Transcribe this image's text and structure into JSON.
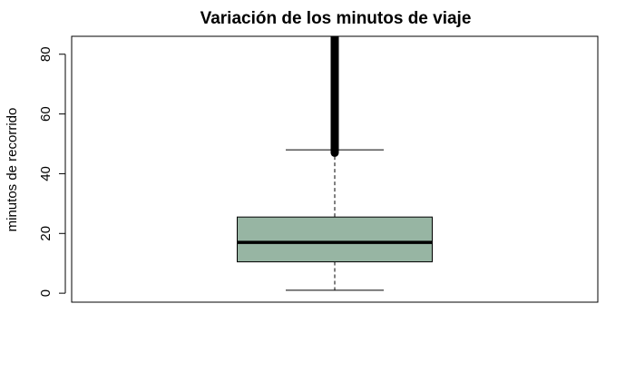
{
  "chart_data": {
    "type": "boxplot",
    "title": "Variación de los minutos de viaje",
    "xlabel": "",
    "ylabel": "minutos de recorrido",
    "ylim": [
      -3,
      86
    ],
    "yticks": [
      0,
      20,
      40,
      60,
      80
    ],
    "series": [
      {
        "whisker_low": 1,
        "q1": 10.5,
        "median": 17,
        "q3": 25.5,
        "whisker_high": 48,
        "outliers_from": 47,
        "outliers_to": 86
      }
    ],
    "box_color": "#97B5A3",
    "grid": false,
    "legend": "none"
  }
}
